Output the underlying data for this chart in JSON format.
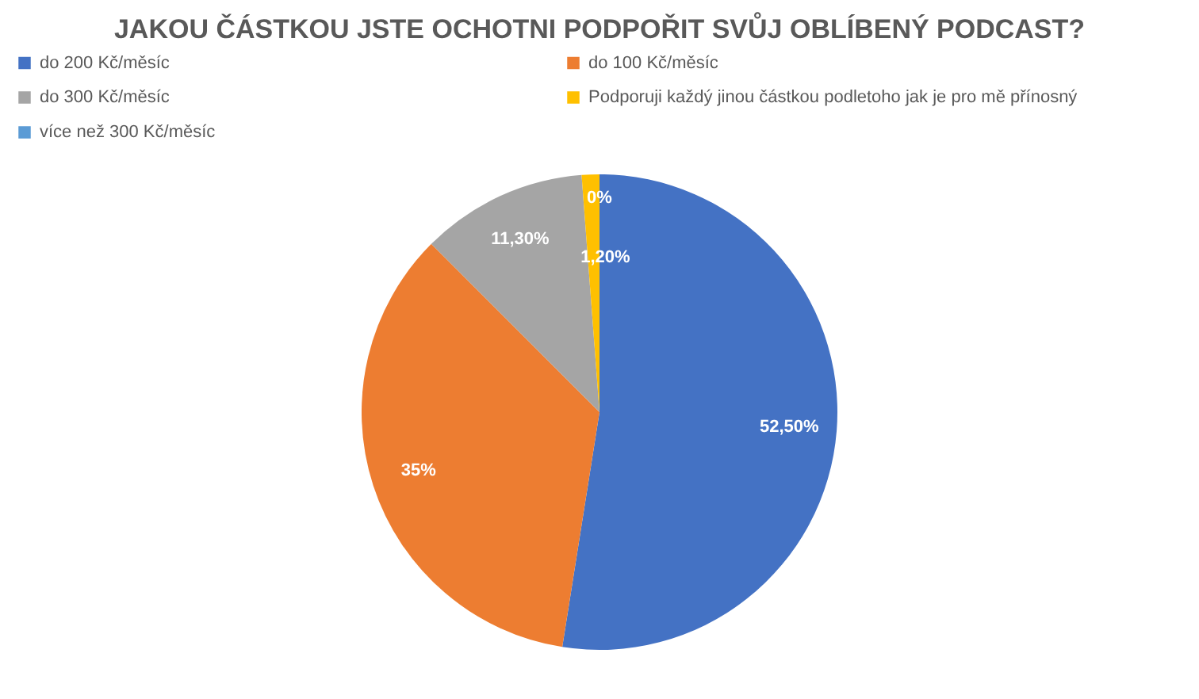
{
  "chart_data": {
    "type": "pie",
    "title": "JAKOU ČÁSTKOU JSTE OCHOTNI PODPOŘIT SVŮJ OBLÍBENÝ PODCAST?",
    "categories": [
      "do 200 Kč/měsíc",
      "do 100 Kč/měsíc",
      "do 300 Kč/měsíc",
      "Podporuji každý jinou částkou podletoho jak je pro mě přínosný",
      "více než 300 Kč/měsíc"
    ],
    "values": [
      52.5,
      35,
      11.3,
      1.2,
      0
    ],
    "colors": [
      "#4472c4",
      "#ed7d31",
      "#a5a5a5",
      "#ffc000",
      "#5b9bd5"
    ],
    "value_labels": [
      "52,50%",
      "35%",
      "11,30%",
      "1,20%",
      "0%"
    ],
    "legend": "top"
  }
}
